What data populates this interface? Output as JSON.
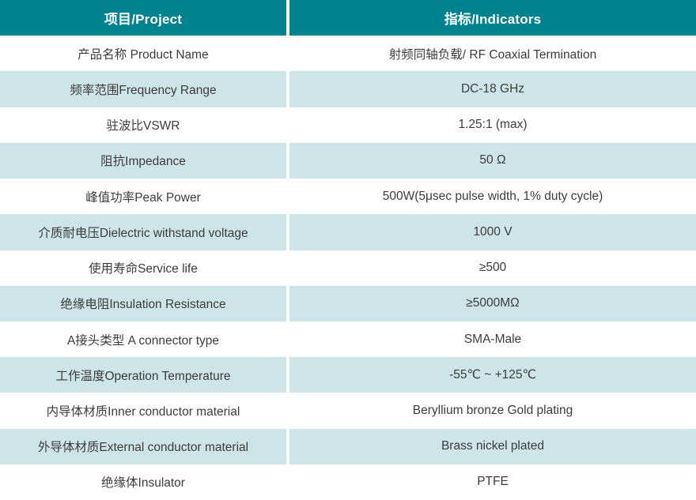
{
  "colors": {
    "header_bg": "#00838f",
    "header_text": "#ffffff",
    "row_bg": "#ffffff",
    "row_alt_bg": "#cde4e9",
    "body_text": "#3c3c3c"
  },
  "table": {
    "header": {
      "project": "项目/Project",
      "indicators": "指标/Indicators"
    },
    "rows": [
      {
        "project": "产品名称 Product Name",
        "indicator": "射频同轴负载/ RF Coaxial Termination"
      },
      {
        "project": "频率范围Frequency Range",
        "indicator": "DC-18 GHz"
      },
      {
        "project": "驻波比VSWR",
        "indicator": "1.25:1 (max)"
      },
      {
        "project": "阻抗Impedance",
        "indicator": "50 Ω"
      },
      {
        "project": "峰值功率Peak Power",
        "indicator": "500W(5μsec pulse width, 1% duty cycle)"
      },
      {
        "project": "介质耐电压Dielectric withstand voltage",
        "indicator": "1000 V"
      },
      {
        "project": "使用寿命Service life",
        "indicator": "≥500"
      },
      {
        "project": "绝缘电阻Insulation Resistance",
        "indicator": "≥5000MΩ"
      },
      {
        "project": "A接头类型 A connector type",
        "indicator": "SMA-Male"
      },
      {
        "project": "工作温度Operation Temperature",
        "indicator": "-55℃ ~ +125℃"
      },
      {
        "project": "内导体材质Inner conductor material",
        "indicator": "Beryllium bronze Gold plating"
      },
      {
        "project": "外导体材质External conductor material",
        "indicator": "Brass nickel plated"
      },
      {
        "project": "绝缘体Insulator",
        "indicator": "PTFE"
      }
    ]
  }
}
